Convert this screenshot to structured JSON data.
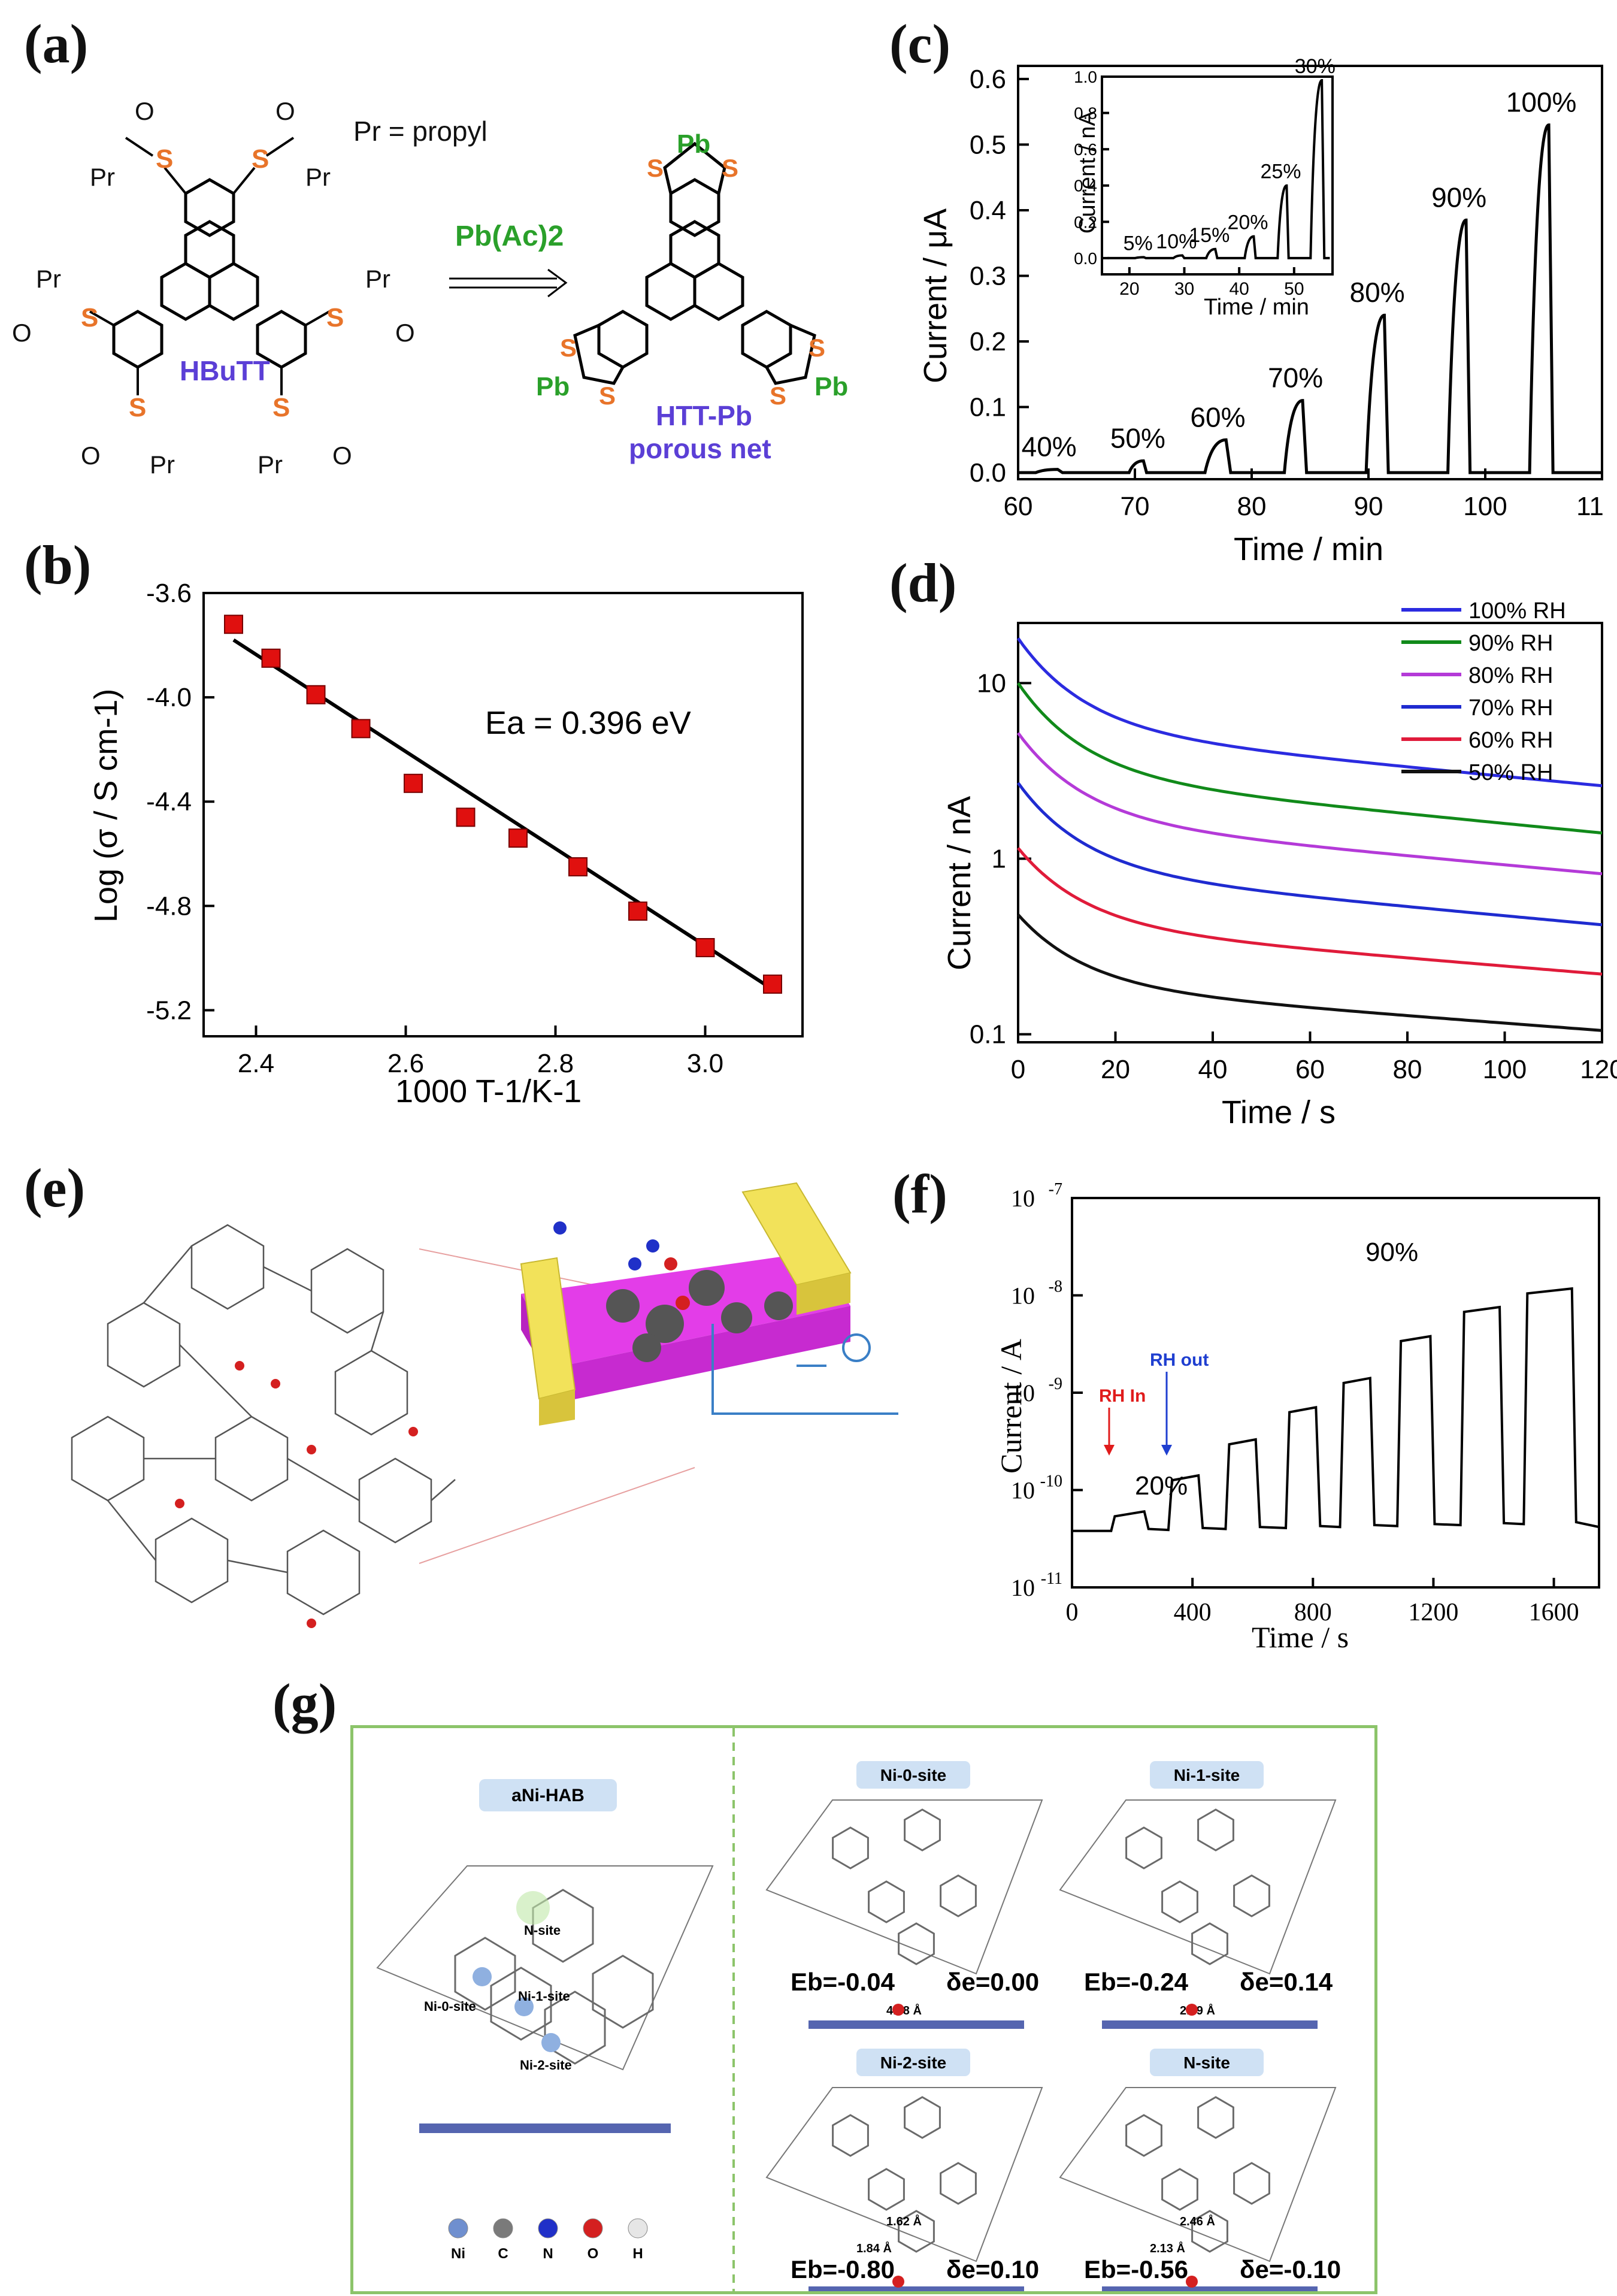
{
  "labels": {
    "a": "(a)",
    "b": "(b)",
    "c": "(c)",
    "d": "(d)",
    "e": "(e)",
    "f": "(f)",
    "g": "(g)"
  },
  "panel_a": {
    "pr_def": "Pr = propyl",
    "reagent": "Pb(Ac)2",
    "reactant_name": "HBuTT",
    "product_name": "HTT-Pb",
    "product_sub": "porous net",
    "atom_s": "S",
    "atom_pb": "Pb",
    "atom_o": "O",
    "group_pr": "Pr"
  },
  "chart_data": [
    {
      "id": "b",
      "type": "scatter",
      "title": "",
      "xlabel": "1000 T-1/K-1",
      "ylabel": "Log (σ / S cm-1)",
      "annotation": "Ea = 0.396 eV",
      "xlim": [
        2.33,
        3.13
      ],
      "ylim": [
        -5.3,
        -3.6
      ],
      "xticks": [
        "2.4",
        "2.6",
        "2.8",
        "3.0"
      ],
      "yticks": [
        "-3.6",
        "-4.0",
        "-4.4",
        "-4.8",
        "-5.2"
      ],
      "x": [
        2.37,
        2.42,
        2.48,
        2.54,
        2.61,
        2.68,
        2.75,
        2.83,
        2.91,
        3.0,
        3.09
      ],
      "y": [
        -3.72,
        -3.85,
        -3.99,
        -4.12,
        -4.33,
        -4.46,
        -4.54,
        -4.65,
        -4.82,
        -4.96,
        -5.1
      ],
      "fit": {
        "x": [
          2.37,
          3.09
        ],
        "y": [
          -3.78,
          -5.12
        ]
      }
    },
    {
      "id": "c",
      "type": "line",
      "xlabel": "Time / min",
      "ylabel": "Current / μA",
      "xlim": [
        60,
        110
      ],
      "ylim": [
        -0.01,
        0.62
      ],
      "xticks": [
        "60",
        "70",
        "80",
        "90",
        "100",
        "11"
      ],
      "yticks": [
        "0.0",
        "0.1",
        "0.2",
        "0.3",
        "0.4",
        "0.5",
        "0.6"
      ],
      "pulses": [
        {
          "label": "40%",
          "start": 61.5,
          "end": 63.8,
          "peak": 0.005
        },
        {
          "label": "50%",
          "start": 69.5,
          "end": 71.0,
          "peak": 0.018
        },
        {
          "label": "60%",
          "start": 76.0,
          "end": 78.2,
          "peak": 0.05
        },
        {
          "label": "70%",
          "start": 82.8,
          "end": 84.7,
          "peak": 0.11
        },
        {
          "label": "80%",
          "start": 89.8,
          "end": 91.7,
          "peak": 0.24
        },
        {
          "label": "90%",
          "start": 96.8,
          "end": 98.7,
          "peak": 0.385
        },
        {
          "label": "100%",
          "start": 103.8,
          "end": 105.8,
          "peak": 0.53
        }
      ],
      "inset": {
        "xlabel": "Time / min",
        "ylabel": "Current / nA",
        "xlim": [
          15,
          57
        ],
        "ylim": [
          -0.03,
          1.0
        ],
        "xticks": [
          "20",
          "30",
          "40",
          "50"
        ],
        "yticks": [
          "0.0",
          "0.2",
          "0.4",
          "0.6",
          "0.8",
          "1.0"
        ],
        "pulses": [
          {
            "label": "5%",
            "start": 21,
            "end": 23,
            "peak": 0.005
          },
          {
            "label": "10%",
            "start": 28,
            "end": 30,
            "peak": 0.015
          },
          {
            "label": "15%",
            "start": 34,
            "end": 36,
            "peak": 0.05
          },
          {
            "label": "20%",
            "start": 41,
            "end": 43,
            "peak": 0.12
          },
          {
            "label": "25%",
            "start": 47,
            "end": 49,
            "peak": 0.4
          },
          {
            "label": "30%",
            "start": 53,
            "end": 55.5,
            "peak": 0.98
          }
        ]
      }
    },
    {
      "id": "d",
      "type": "line",
      "yscale": "log",
      "xlabel": "Time / s",
      "ylabel": "Current / nA",
      "xlim": [
        0,
        120
      ],
      "ylim": [
        0.09,
        22
      ],
      "xticks": [
        "0",
        "20",
        "40",
        "60",
        "80",
        "100",
        "120"
      ],
      "yticks": [
        "0.1",
        "1",
        "10"
      ],
      "legend_position": "top-right",
      "series": [
        {
          "name": "100% RH",
          "color": "#2b2be0",
          "start": 18,
          "end": 2.6
        },
        {
          "name": "90% RH",
          "color": "#118a1a",
          "start": 10,
          "end": 1.4
        },
        {
          "name": "80% RH",
          "color": "#b43ad8",
          "start": 5.2,
          "end": 0.82
        },
        {
          "name": "70% RH",
          "color": "#1f2bd0",
          "start": 2.7,
          "end": 0.42
        },
        {
          "name": "60% RH",
          "color": "#e01b3a",
          "start": 1.15,
          "end": 0.22
        },
        {
          "name": "50% RH",
          "color": "#111111",
          "start": 0.48,
          "end": 0.105
        }
      ]
    },
    {
      "id": "f",
      "type": "line",
      "yscale": "log",
      "xlabel": "Time / s",
      "ylabel": "Current / A",
      "xlim": [
        0,
        1750
      ],
      "ylim_exp": [
        -11,
        -7
      ],
      "xticks": [
        "0",
        "400",
        "800",
        "1200",
        "1600"
      ],
      "yticks_exp": [
        "-11",
        "-10",
        "-9",
        "-8",
        "-7"
      ],
      "tick_base": "10",
      "baseline_exp": -10.42,
      "pulses": [
        {
          "start": 130,
          "end": 240,
          "peak_exp": -10.22
        },
        {
          "start": 320,
          "end": 420,
          "peak_exp": -9.85
        },
        {
          "start": 510,
          "end": 610,
          "peak_exp": -9.48
        },
        {
          "start": 710,
          "end": 810,
          "peak_exp": -9.15
        },
        {
          "start": 890,
          "end": 990,
          "peak_exp": -8.85
        },
        {
          "start": 1080,
          "end": 1190,
          "peak_exp": -8.42
        },
        {
          "start": 1290,
          "end": 1420,
          "peak_exp": -8.12
        },
        {
          "start": 1500,
          "end": 1660,
          "peak_exp": -7.93
        }
      ],
      "annotations": {
        "first": "20%",
        "last": "90%",
        "rh_in": "RH In",
        "rh_out": "RH out"
      }
    }
  ],
  "panel_g": {
    "left_title": "aNi-HAB",
    "site_labels": [
      "N-site",
      "Ni-0-site",
      "Ni-1-site",
      "Ni-2-site"
    ],
    "legend": [
      "Ni",
      "C",
      "N",
      "O",
      "H"
    ],
    "legend_colors": [
      "#6f8fcf",
      "#7a7a7a",
      "#2030c8",
      "#d42020",
      "#e6e6e6"
    ],
    "structures": [
      {
        "title": "Ni-0-site",
        "eb": "-0.04",
        "de": "0.00",
        "dist": "4.08 Å"
      },
      {
        "title": "Ni-1-site",
        "eb": "-0.24",
        "de": "0.14",
        "dist": "2.79 Å"
      },
      {
        "title": "Ni-2-site",
        "eb": "-0.80",
        "de": "0.10",
        "dist": "1.62 Å",
        "dist2": "1.84 Å"
      },
      {
        "title": "N-site",
        "eb": "-0.56",
        "de": "-0.10",
        "dist": "2.46 Å",
        "dist2": "2.13 Å"
      }
    ]
  }
}
